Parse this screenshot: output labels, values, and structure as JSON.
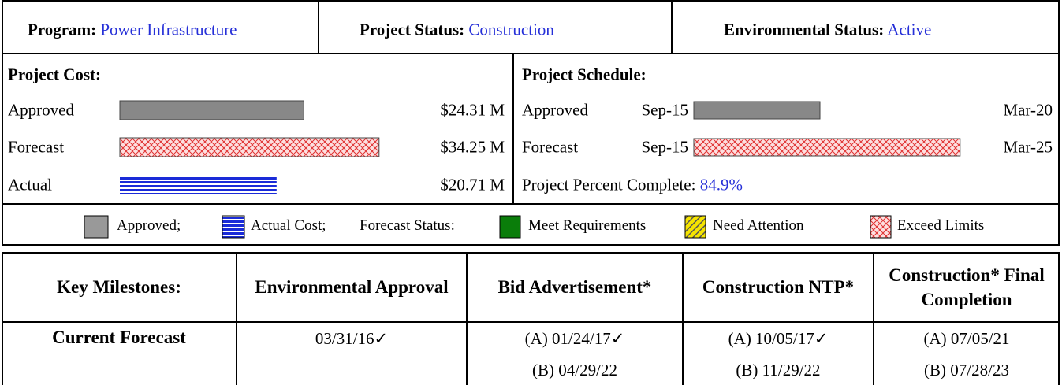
{
  "header": {
    "program": {
      "label": "Program:",
      "value": "Power Infrastructure"
    },
    "project_status": {
      "label": "Project Status:",
      "value": "Construction"
    },
    "environmental_status": {
      "label": "Environmental Status:",
      "value": "Active"
    }
  },
  "cost": {
    "title": "Project Cost:",
    "rows": [
      {
        "label": "Approved",
        "value": 24.31,
        "value_label": "$24.31 M"
      },
      {
        "label": "Forecast",
        "value": 34.25,
        "value_label": "$34.25 M"
      },
      {
        "label": "Actual",
        "value": 20.71,
        "value_label": "$20.71 M"
      }
    ]
  },
  "schedule": {
    "title": "Project Schedule:",
    "rows": [
      {
        "label": "Approved",
        "start": "Sep-15",
        "end": "Mar-20"
      },
      {
        "label": "Forecast",
        "start": "Sep-15",
        "end": "Mar-25"
      }
    ],
    "percent_label": "Project Percent Complete:",
    "percent": "84.9%"
  },
  "legend": {
    "items": [
      "Approved;",
      "Actual Cost;",
      "Forecast Status:",
      "Meet Requirements",
      "Need Attention",
      "Exceed Limits"
    ]
  },
  "milestones": {
    "header": [
      "Key Milestones:",
      "Environmental Approval",
      "Bid Advertisement*",
      "Construction NTP*",
      "Construction* Final Completion"
    ],
    "rows": [
      {
        "label": "Current Forecast",
        "cells": [
          [
            "03/31/16✓"
          ],
          [
            "(A) 01/24/17✓",
            "(B) 04/29/22"
          ],
          [
            "(A) 10/05/17✓",
            "(B) 11/29/22"
          ],
          [
            "(A) 07/05/21",
            "(B) 07/28/23"
          ]
        ]
      }
    ]
  }
}
